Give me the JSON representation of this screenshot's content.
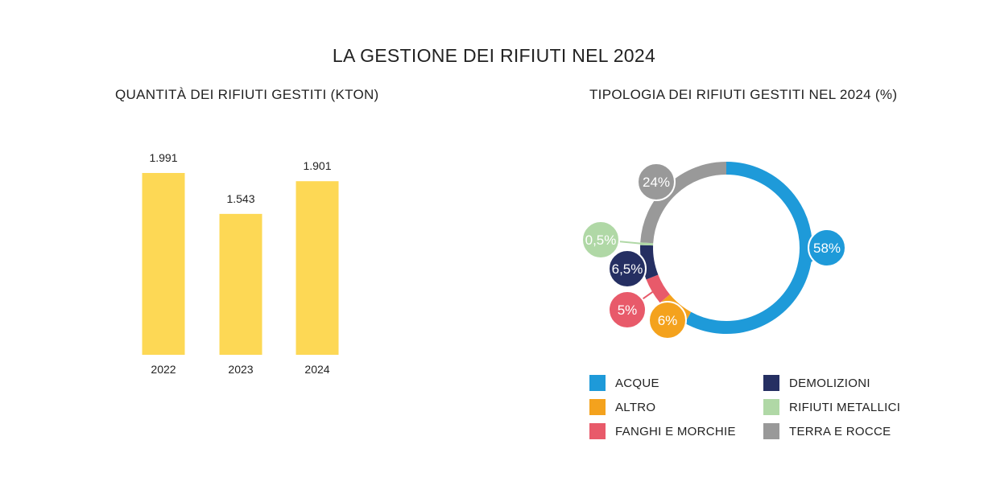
{
  "title": "LA GESTIONE DEI RIFIUTI NEL 2024",
  "chart_data": [
    {
      "type": "bar",
      "title": "QUANTITÀ DEI RIFIUTI GESTITI (KTON)",
      "categories": [
        "2022",
        "2023",
        "2024"
      ],
      "values": [
        1991,
        1543,
        1901
      ],
      "value_labels": [
        "1.991",
        "1.543",
        "1.901"
      ],
      "bar_color": "#FDD855",
      "grid": false
    },
    {
      "type": "pie",
      "style": "donut",
      "title": "TIPOLOGIA DEI RIFIUTI GESTITI NEL 2024 (%)",
      "slices": [
        {
          "label": "ACQUE",
          "value": 58,
          "value_label": "58%",
          "color": "#1E9AD9"
        },
        {
          "label": "ALTRO",
          "value": 6,
          "value_label": "6%",
          "color": "#F4A21D"
        },
        {
          "label": "FANGHI E MORCHIE",
          "value": 5,
          "value_label": "5%",
          "color": "#E85A6A"
        },
        {
          "label": "DEMOLIZIONI",
          "value": 6.5,
          "value_label": "6,5%",
          "color": "#252F62"
        },
        {
          "label": "RIFIUTI METALLICI",
          "value": 0.5,
          "value_label": "0,5%",
          "color": "#B0D8A6"
        },
        {
          "label": "TERRA E ROCCE",
          "value": 24,
          "value_label": "24%",
          "color": "#999999"
        }
      ],
      "legend_placement": "bottom"
    }
  ],
  "legend_order": [
    "ACQUE",
    "DEMOLIZIONI",
    "ALTRO",
    "RIFIUTI METALLICI",
    "FANGHI E MORCHIE",
    "TERRA E ROCCE"
  ]
}
